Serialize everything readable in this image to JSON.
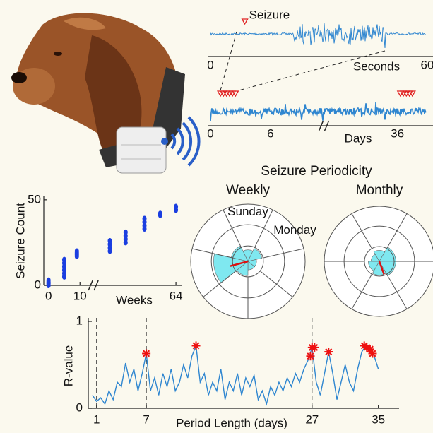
{
  "chart_data": [
    {
      "type": "trace",
      "x_label": "Seconds",
      "annotation": "Seizure",
      "xlim": [
        0,
        60
      ],
      "xticks": [
        0,
        60
      ],
      "seizures": [
        9.5
      ]
    },
    {
      "type": "trace",
      "x_label": "Days",
      "xlim": [
        0,
        39
      ],
      "xbreak": [
        11,
        29
      ],
      "xticks": [
        0,
        6,
        36
      ],
      "seizures": [
        1,
        1.3,
        1.6,
        1.9,
        2.2,
        2.5,
        36.3,
        36.6,
        36.9,
        37.2,
        37.5
      ]
    },
    {
      "type": "scatter",
      "y_label": "Seizure Count",
      "x_label": "Weeks",
      "color": "#1a3ee0",
      "xlim": [
        -1.5,
        66
      ],
      "xbreak": [
        12,
        40
      ],
      "xticks": [
        0,
        10,
        64
      ],
      "ylim": [
        0,
        52
      ],
      "yticks": [
        0,
        50
      ],
      "x": [
        0,
        0,
        0,
        0,
        5,
        5,
        5,
        5,
        5,
        5,
        9,
        9,
        9,
        9,
        43,
        43,
        43,
        43,
        48,
        48,
        48,
        48,
        54,
        54,
        54,
        54,
        59,
        59,
        64,
        64
      ],
      "values": [
        0,
        1,
        2,
        3,
        5,
        7,
        9,
        11,
        13,
        15,
        17,
        18,
        19,
        20,
        20,
        22,
        24,
        26,
        25,
        27,
        29,
        31,
        33,
        35,
        37,
        39,
        41,
        42,
        44,
        46
      ]
    },
    {
      "type": "polar",
      "title": "Seizure Periodicity",
      "subtitle": "Weekly",
      "color": "#7fe8f0",
      "categories": [
        "Sunday",
        "Monday",
        null,
        null,
        null,
        null,
        null
      ],
      "values": [
        0.2,
        0.25,
        0.15,
        0.15,
        0.25,
        0.6,
        0.3
      ],
      "rlim": [
        0,
        1
      ],
      "rticks": [
        0.27,
        0.64,
        1
      ],
      "vector": {
        "angle": 255,
        "length": 0.32
      }
    },
    {
      "type": "polar",
      "subtitle": "Monthly",
      "color": "#7fe8f0",
      "values": [
        0.2,
        0.3,
        0.3,
        0.25,
        0.2,
        0.15
      ],
      "rlim": [
        0,
        1
      ],
      "rticks": [
        0.27,
        0.64,
        1
      ],
      "vector": {
        "angle": 160,
        "length": 0.25
      }
    },
    {
      "type": "line",
      "x_label": "Period Length (days)",
      "y_label": "R-value",
      "color": "#2f86d0",
      "peak_color": "#ee1111",
      "xlim": [
        0,
        37.5
      ],
      "xticks": [
        1,
        7,
        27,
        35
      ],
      "ylim": [
        0,
        1
      ],
      "yticks": [
        0,
        1
      ],
      "vlines": [
        1,
        7,
        27
      ],
      "x": [
        0.5,
        1,
        1.5,
        2,
        2.5,
        3,
        3.5,
        4,
        4.5,
        5,
        5.5,
        6,
        6.5,
        7,
        7.5,
        8,
        8.5,
        9,
        9.5,
        10,
        10.5,
        11,
        11.5,
        12,
        12.5,
        13,
        13.5,
        14,
        14.5,
        15,
        15.5,
        16,
        16.5,
        17,
        17.5,
        18,
        18.5,
        19,
        19.5,
        20,
        20.5,
        21,
        21.5,
        22,
        22.5,
        23,
        23.5,
        24,
        24.5,
        25,
        25.5,
        26,
        26.5,
        27,
        27.5,
        28,
        28.5,
        29,
        29.5,
        30,
        30.5,
        31,
        31.5,
        32,
        32.5,
        33,
        33.5,
        34,
        34.5,
        35
      ],
      "values": [
        0.15,
        0.08,
        0.12,
        0.05,
        0.2,
        0.1,
        0.3,
        0.25,
        0.52,
        0.3,
        0.45,
        0.2,
        0.4,
        0.63,
        0.2,
        0.35,
        0.15,
        0.4,
        0.25,
        0.45,
        0.2,
        0.3,
        0.5,
        0.35,
        0.6,
        0.72,
        0.3,
        0.4,
        0.15,
        0.3,
        0.2,
        0.45,
        0.1,
        0.3,
        0.2,
        0.4,
        0.15,
        0.35,
        0.25,
        0.38,
        0.1,
        0.2,
        0.05,
        0.25,
        0.15,
        0.3,
        0.2,
        0.35,
        0.25,
        0.4,
        0.3,
        0.45,
        0.55,
        0.7,
        0.3,
        0.15,
        0.4,
        0.65,
        0.4,
        0.1,
        0.3,
        0.5,
        0.3,
        0.2,
        0.45,
        0.65,
        0.72,
        0.7,
        0.6,
        0.45
      ],
      "peaks": {
        "x": [
          7,
          13,
          26.8,
          27,
          27.3,
          29,
          33.3,
          33.6,
          34,
          34.3
        ],
        "values": [
          0.63,
          0.72,
          0.6,
          0.7,
          0.7,
          0.65,
          0.72,
          0.7,
          0.68,
          0.63
        ]
      }
    }
  ]
}
